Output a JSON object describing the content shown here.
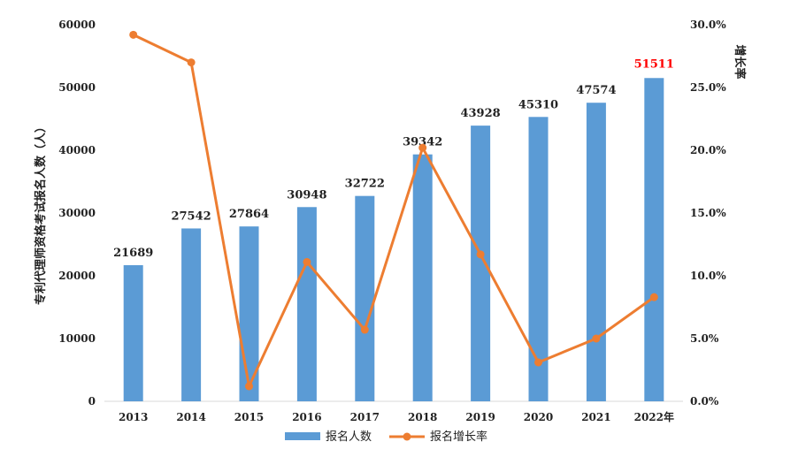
{
  "chart_data": {
    "type": "bar",
    "categories": [
      "2013",
      "2014",
      "2015",
      "2016",
      "2017",
      "2018",
      "2019",
      "2020",
      "2021",
      "2022年"
    ],
    "series": [
      {
        "name": "报名人数",
        "kind": "bar",
        "axis": "left",
        "color": "#5b9bd5",
        "values": [
          21689,
          27542,
          27864,
          30948,
          32722,
          39342,
          43928,
          45310,
          47574,
          51511
        ],
        "labels": [
          "21689",
          "27542",
          "27864",
          "30948",
          "32722",
          "39342",
          "43928",
          "45310",
          "47574",
          "51511"
        ]
      },
      {
        "name": "报名增长率",
        "kind": "line",
        "axis": "right",
        "color": "#ed7d31",
        "values": [
          29.2,
          27.0,
          1.2,
          11.1,
          5.7,
          20.2,
          11.7,
          3.1,
          5.0,
          8.3
        ]
      }
    ],
    "highlight": {
      "index": 9,
      "color": "#ff0000"
    },
    "ylabel": "专利代理师资格考试报名人数（人）",
    "y2label": "增长率",
    "ylim": [
      0,
      60000
    ],
    "y2lim": [
      0,
      30
    ],
    "yticks": [
      "0",
      "10000",
      "20000",
      "30000",
      "40000",
      "50000",
      "60000"
    ],
    "y2ticks": [
      "0.0%",
      "5.0%",
      "10.0%",
      "15.0%",
      "20.0%",
      "25.0%",
      "30.0%"
    ],
    "grid": false,
    "legend": "bottom"
  }
}
